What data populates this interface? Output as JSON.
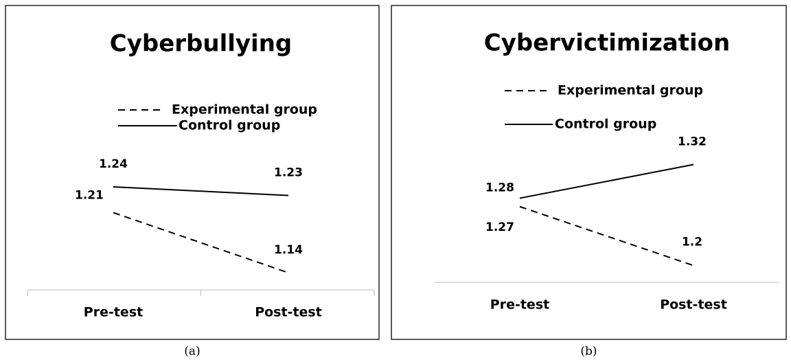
{
  "chart_data": [
    {
      "type": "line",
      "title": "Cyberbullying",
      "caption": "(a)",
      "categories": [
        "Pre-test",
        "Post-test"
      ],
      "series": [
        {
          "name": "Experimental group",
          "color": "#000000",
          "line_style": "dashed",
          "values": [
            1.21,
            1.14
          ]
        },
        {
          "name": "Control group",
          "color": "#000000",
          "line_style": "solid",
          "values": [
            1.24,
            1.23
          ]
        }
      ],
      "ylim": [
        1.12,
        1.36
      ],
      "category_ticks": true
    },
    {
      "type": "line",
      "title": "Cybervictimization",
      "caption": "(b)",
      "categories": [
        "Pre-test",
        "Post-test"
      ],
      "series": [
        {
          "name": "Experimental group",
          "color": "#000000",
          "line_style": "dashed",
          "values": [
            1.27,
            1.2
          ]
        },
        {
          "name": "Control group",
          "color": "#000000",
          "line_style": "solid",
          "values": [
            1.28,
            1.32
          ]
        }
      ],
      "ylim": [
        1.18,
        1.42
      ],
      "category_ticks": false
    }
  ]
}
